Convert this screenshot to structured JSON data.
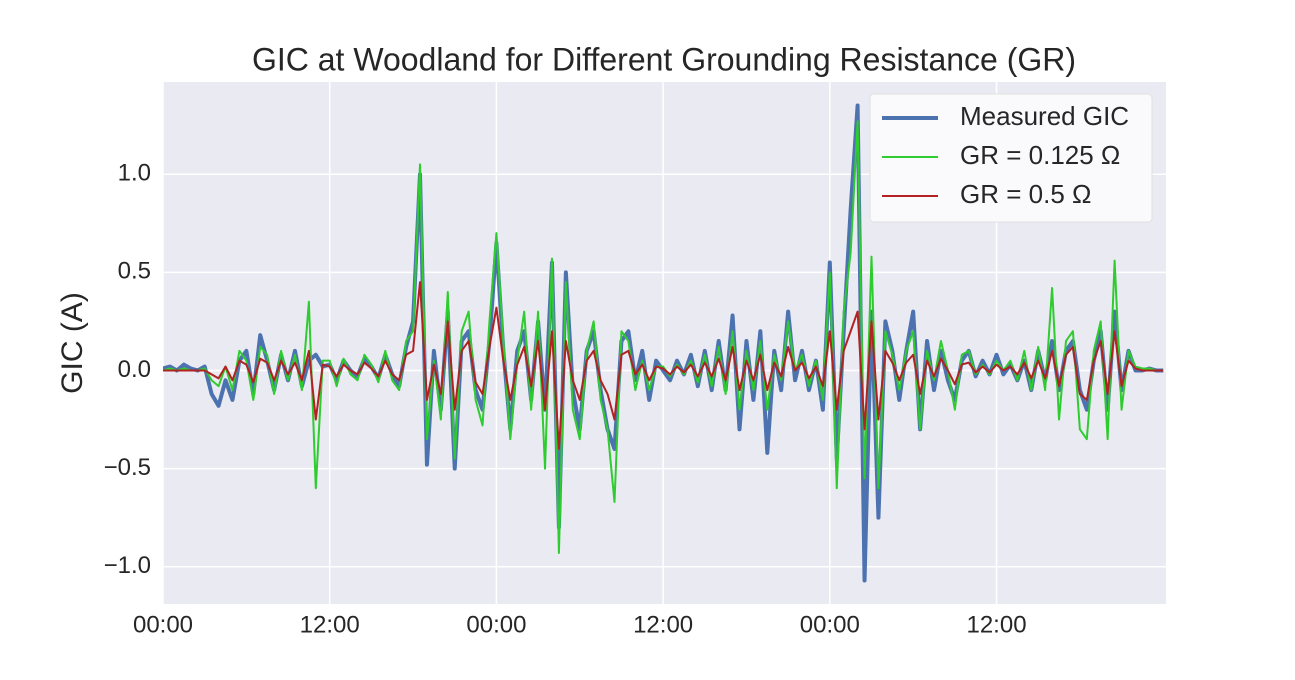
{
  "chart_data": {
    "type": "line",
    "title": "GIC at Woodland for Different Grounding Resistance (GR)",
    "y_label": "GIC (A)",
    "xlim": [
      0,
      72.2
    ],
    "xticks": [
      {
        "value": 0,
        "label": "00:00"
      },
      {
        "value": 12,
        "label": "12:00"
      },
      {
        "value": 24,
        "label": "00:00"
      },
      {
        "value": 36,
        "label": "12:00"
      },
      {
        "value": 48,
        "label": "00:00"
      },
      {
        "value": 60,
        "label": "12:00"
      }
    ],
    "ylim": [
      -1.19,
      1.47
    ],
    "yticks": [
      {
        "value": -1,
        "label": "−1.0"
      },
      {
        "value": -0.5,
        "label": "−0.5"
      },
      {
        "value": 0,
        "label": "0.0"
      },
      0.5,
      {
        "value": 1,
        "label": "1.0"
      }
    ],
    "grid": true,
    "legend": "upper right",
    "x": [
      0,
      0.5,
      1,
      1.5,
      2,
      2.5,
      3,
      3.5,
      4,
      4.5,
      5,
      5.5,
      6,
      6.5,
      7,
      7.5,
      8,
      8.5,
      9,
      9.5,
      10,
      10.5,
      11,
      11.5,
      12,
      12.5,
      13,
      13.5,
      14,
      14.5,
      15,
      15.5,
      16,
      16.5,
      17,
      17.5,
      18,
      18.5,
      19,
      19.5,
      20,
      20.5,
      21,
      21.5,
      22,
      22.5,
      23,
      23.5,
      24,
      24.5,
      25,
      25.5,
      26,
      26.5,
      27,
      27.5,
      28,
      28.5,
      29,
      29.5,
      30,
      30.5,
      31,
      31.5,
      32,
      32.5,
      33,
      33.5,
      34,
      34.5,
      35,
      35.5,
      36,
      36.5,
      37,
      37.5,
      38,
      38.5,
      39,
      39.5,
      40,
      40.5,
      41,
      41.5,
      42,
      42.5,
      43,
      43.5,
      44,
      44.5,
      45,
      45.5,
      46,
      46.5,
      47,
      47.5,
      48,
      48.5,
      49,
      49.5,
      50,
      50.5,
      51,
      51.5,
      52,
      52.5,
      53,
      53.5,
      54,
      54.5,
      55,
      55.5,
      56,
      56.5,
      57,
      57.5,
      58,
      58.5,
      59,
      59.5,
      60,
      60.5,
      61,
      61.5,
      62,
      62.5,
      63,
      63.5,
      64,
      64.5,
      65,
      65.5,
      66,
      66.5,
      67,
      67.5,
      68,
      68.5,
      69,
      69.5,
      70,
      70.5,
      71,
      71.5,
      72
    ],
    "series": [
      {
        "name": "Measured GIC",
        "color": "#4c72b0",
        "width": 4,
        "values": [
          0.01,
          0.02,
          0,
          0.03,
          0.01,
          0,
          0.02,
          -0.12,
          -0.18,
          -0.05,
          -0.15,
          0.05,
          0.1,
          -0.12,
          0.18,
          0.05,
          -0.1,
          0.08,
          -0.05,
          0.1,
          -0.08,
          0.05,
          0.08,
          0.02,
          0.03,
          -0.05,
          0.05,
          0,
          -0.03,
          0.06,
          0.02,
          -0.04,
          0.08,
          -0.02,
          -0.08,
          0.12,
          0.25,
          1.0,
          -0.48,
          0.1,
          -0.2,
          0.3,
          -0.5,
          0.15,
          0.2,
          -0.1,
          -0.2,
          0.15,
          0.65,
          0.1,
          -0.3,
          0.1,
          0.2,
          -0.15,
          0.25,
          -0.2,
          0.55,
          -0.8,
          0.5,
          -0.1,
          -0.3,
          0.1,
          0.2,
          -0.1,
          -0.3,
          -0.4,
          0.15,
          0.2,
          -0.05,
          0.1,
          -0.15,
          0.05,
          0,
          -0.05,
          0.05,
          -0.02,
          0.08,
          -0.08,
          0.1,
          -0.1,
          0.15,
          -0.1,
          0.28,
          -0.3,
          0.15,
          -0.15,
          0.2,
          -0.42,
          0.1,
          -0.1,
          0.3,
          -0.05,
          0.1,
          -0.1,
          0.05,
          -0.2,
          0.55,
          -0.45,
          0.2,
          0.82,
          1.35,
          -1.07,
          0.3,
          -0.75,
          0.25,
          0.1,
          -0.15,
          0.1,
          0.3,
          -0.3,
          0.15,
          -0.1,
          0.1,
          -0.05,
          -0.15,
          0.05,
          0.1,
          -0.03,
          0.05,
          -0.02,
          0.08,
          -0.02,
          0.03,
          -0.05,
          0.05,
          -0.1,
          0.1,
          -0.05,
          0.15,
          -0.1,
          0.1,
          0.15,
          -0.1,
          -0.2,
          0.05,
          0.2,
          -0.2,
          0.3,
          -0.1,
          0.1,
          0,
          0,
          0.01,
          0,
          0
        ]
      },
      {
        "name": "GR = 0.125 Ω",
        "color": "#2ecc2e",
        "width": 2,
        "values": [
          0,
          0.01,
          0,
          0.01,
          0,
          0,
          0.01,
          -0.05,
          -0.08,
          0.02,
          -0.1,
          0.1,
          0.05,
          -0.15,
          0.12,
          0.08,
          -0.12,
          0.1,
          -0.05,
          0.08,
          -0.1,
          0.35,
          -0.6,
          0.05,
          0.05,
          -0.08,
          0.06,
          -0.02,
          -0.05,
          0.08,
          0.03,
          -0.06,
          0.1,
          -0.05,
          -0.1,
          0.15,
          0.2,
          1.05,
          -0.35,
          0.05,
          -0.25,
          0.4,
          -0.45,
          0.2,
          0.3,
          -0.15,
          -0.28,
          0.25,
          0.7,
          0.15,
          -0.35,
          0.05,
          0.3,
          -0.2,
          0.3,
          -0.5,
          0.57,
          -0.93,
          0.45,
          -0.2,
          -0.35,
          0.1,
          0.25,
          -0.15,
          -0.3,
          -0.67,
          0.2,
          0.15,
          -0.1,
          0.05,
          -0.1,
          0.02,
          0.02,
          -0.03,
          0.03,
          -0.02,
          0.05,
          -0.06,
          0.08,
          -0.08,
          0.12,
          -0.12,
          0.2,
          -0.2,
          0.1,
          -0.1,
          0.15,
          -0.2,
          0.08,
          -0.05,
          0.25,
          0,
          0.08,
          -0.08,
          0.05,
          -0.15,
          0.5,
          -0.6,
          0.3,
          0.6,
          1.27,
          -0.55,
          0.58,
          -0.6,
          0.2,
          0.08,
          -0.1,
          0.1,
          0.2,
          -0.3,
          0.1,
          -0.05,
          0.15,
          0,
          -0.2,
          0.08,
          0.1,
          -0.02,
          0.03,
          -0.02,
          0.05,
          0,
          0.05,
          -0.05,
          0.1,
          -0.1,
          0.12,
          -0.1,
          0.42,
          -0.25,
          0.15,
          0.2,
          -0.3,
          -0.35,
          0.1,
          0.25,
          -0.35,
          0.56,
          -0.2,
          0.1,
          0.02,
          0.01,
          0.01,
          0,
          0
        ]
      },
      {
        "name": "GR = 0.5 Ω",
        "color": "#b22222",
        "width": 2,
        "values": [
          0,
          0,
          0,
          0,
          0,
          0,
          0,
          -0.02,
          -0.04,
          0.02,
          -0.05,
          0.05,
          0.03,
          -0.06,
          0.06,
          0.04,
          -0.05,
          0.05,
          -0.02,
          0.04,
          -0.05,
          0.1,
          -0.25,
          0.03,
          0.02,
          -0.03,
          0.03,
          0,
          -0.02,
          0.04,
          0.01,
          -0.03,
          0.05,
          -0.02,
          -0.05,
          0.08,
          0.1,
          0.45,
          -0.15,
          0.03,
          -0.12,
          0.25,
          -0.2,
          0.1,
          0.15,
          -0.06,
          -0.12,
          0.12,
          0.32,
          0.05,
          -0.15,
          0.03,
          0.12,
          -0.08,
          0.15,
          -0.2,
          0.2,
          -0.4,
          0.15,
          -0.05,
          -0.15,
          0.05,
          0.1,
          -0.05,
          -0.12,
          -0.25,
          0.08,
          0.1,
          -0.02,
          0.03,
          -0.05,
          0.02,
          0.01,
          -0.02,
          0.02,
          -0.01,
          0.03,
          -0.03,
          0.04,
          -0.03,
          0.06,
          -0.05,
          0.12,
          -0.1,
          0.05,
          -0.05,
          0.08,
          -0.1,
          0.04,
          -0.03,
          0.12,
          0,
          0.04,
          -0.04,
          0.02,
          -0.08,
          0.2,
          -0.2,
          0.1,
          0.2,
          0.3,
          -0.3,
          0.25,
          -0.25,
          0.1,
          0.04,
          -0.05,
          0.04,
          0.08,
          -0.12,
          0.05,
          -0.03,
          0.06,
          0,
          -0.07,
          0.03,
          0.04,
          -0.01,
          0.02,
          -0.01,
          0.03,
          0,
          0.02,
          -0.02,
          0.04,
          -0.04,
          0.05,
          -0.04,
          0.1,
          -0.08,
          0.08,
          0.12,
          -0.12,
          -0.15,
          0.05,
          0.15,
          -0.12,
          0.2,
          -0.08,
          0.05,
          0.01,
          0,
          0,
          0,
          0
        ]
      }
    ]
  }
}
